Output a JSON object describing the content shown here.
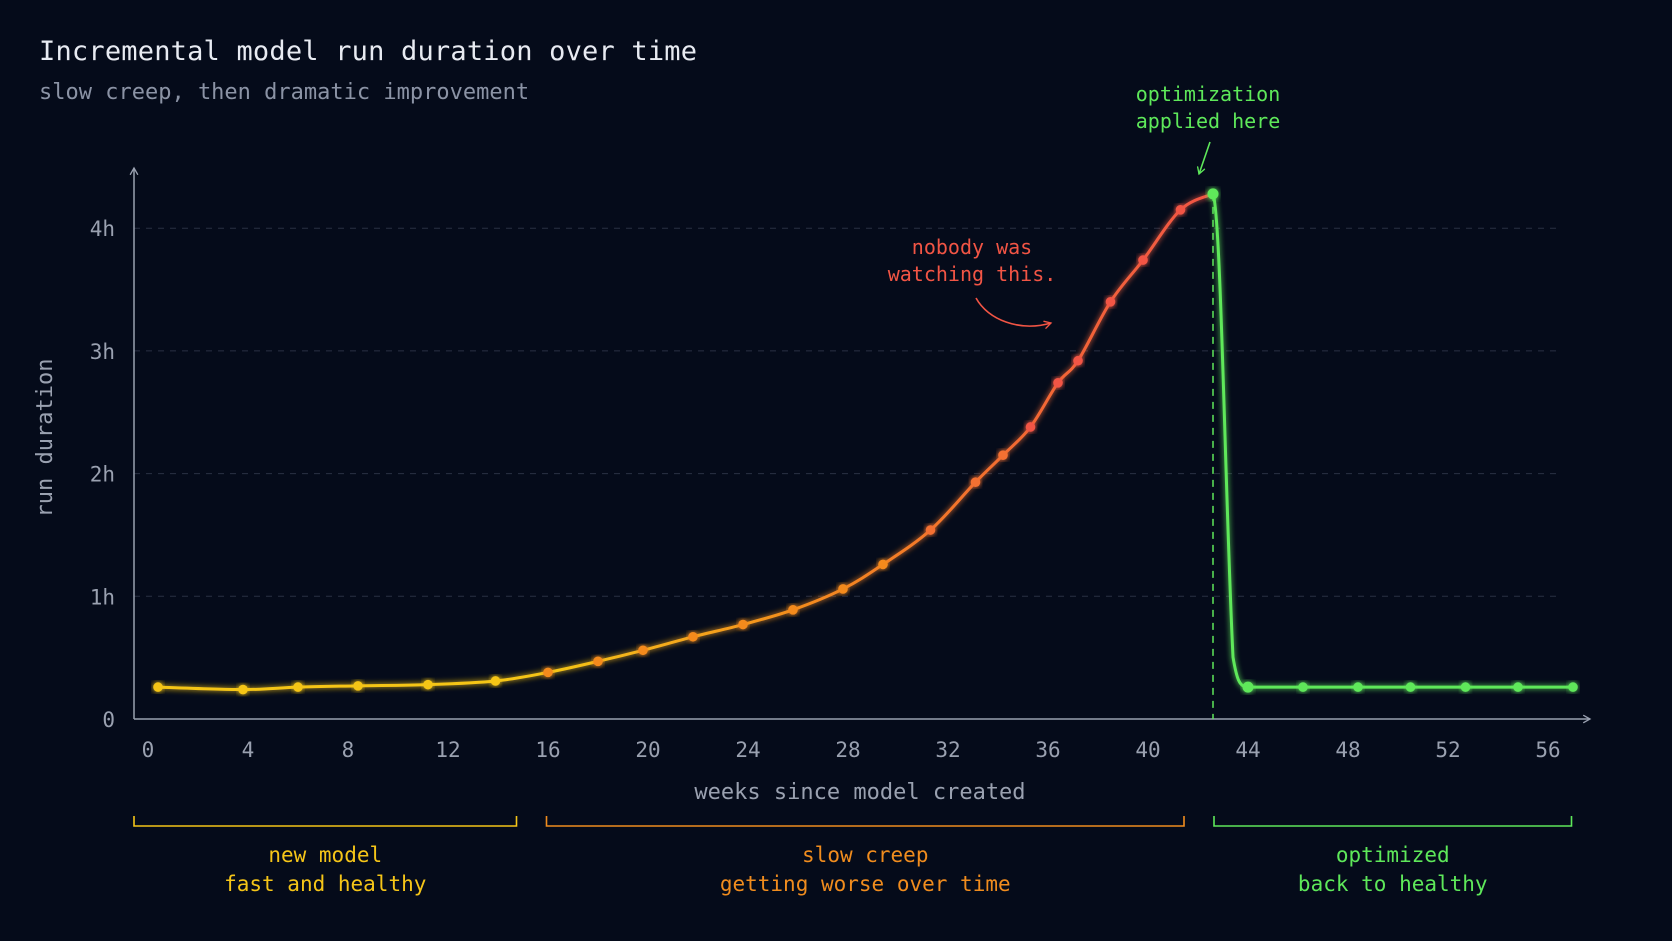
{
  "header": {
    "title": "Incremental model run duration over time",
    "subtitle": "slow creep, then dramatic improvement"
  },
  "chart_data": {
    "type": "line",
    "xlabel": "weeks since model created",
    "ylabel": "run duration",
    "xlim": [
      0,
      57
    ],
    "ylim": [
      0,
      4.5
    ],
    "x_ticks": [
      "0",
      "4",
      "8",
      "12",
      "16",
      "20",
      "24",
      "28",
      "32",
      "36",
      "40",
      "44",
      "48",
      "52",
      "56"
    ],
    "y_ticks": [
      {
        "value": 0,
        "label": "0"
      },
      {
        "value": 1,
        "label": "1h"
      },
      {
        "value": 2,
        "label": "2h"
      },
      {
        "value": 3,
        "label": "3h"
      },
      {
        "value": 4,
        "label": "4h"
      }
    ],
    "grid": "horizontal dashed",
    "series": [
      {
        "points": [
          [
            0.4,
            0.26
          ],
          [
            3.8,
            0.24
          ],
          [
            6.0,
            0.26
          ],
          [
            8.4,
            0.27
          ],
          [
            11.2,
            0.28
          ],
          [
            13.9,
            0.31
          ],
          [
            16.0,
            0.38
          ],
          [
            18.0,
            0.47
          ],
          [
            19.8,
            0.56
          ],
          [
            21.8,
            0.67
          ],
          [
            23.8,
            0.77
          ],
          [
            25.8,
            0.89
          ],
          [
            27.8,
            1.06
          ],
          [
            29.4,
            1.26
          ],
          [
            31.3,
            1.54
          ],
          [
            33.1,
            1.93
          ],
          [
            34.2,
            2.15
          ],
          [
            35.3,
            2.38
          ],
          [
            36.4,
            2.74
          ],
          [
            37.2,
            2.92
          ],
          [
            38.5,
            3.4
          ],
          [
            39.8,
            3.74
          ],
          [
            41.3,
            4.15
          ],
          [
            42.6,
            4.28
          ],
          [
            44.0,
            0.26
          ],
          [
            46.2,
            0.26
          ],
          [
            48.4,
            0.26
          ],
          [
            50.5,
            0.26
          ],
          [
            52.7,
            0.26
          ],
          [
            54.8,
            0.26
          ],
          [
            57.0,
            0.26
          ]
        ]
      }
    ],
    "optimization_week": 42.6,
    "annotations": {
      "optimization": [
        "optimization",
        "applied here"
      ],
      "nobody": [
        "nobody was",
        "watching this."
      ]
    },
    "phases": [
      {
        "title": "new model",
        "subtitle": "fast and healthy",
        "from": 0,
        "to": 15.3,
        "color": "#f5c518"
      },
      {
        "title": "slow creep",
        "subtitle": "getting worse over time",
        "from": 16.5,
        "to": 42,
        "color": "#f08c1e"
      },
      {
        "title": "optimized",
        "subtitle": "back to healthy",
        "from": 43.2,
        "to": 57.5,
        "color": "#5ee85a"
      }
    ],
    "colors": {
      "yellow": "#f5c518",
      "orange": "#f48a1f",
      "red": "#f25545",
      "green": "#5ee85a",
      "axis": "#9aa1b0",
      "grid": "#2a3143"
    }
  }
}
